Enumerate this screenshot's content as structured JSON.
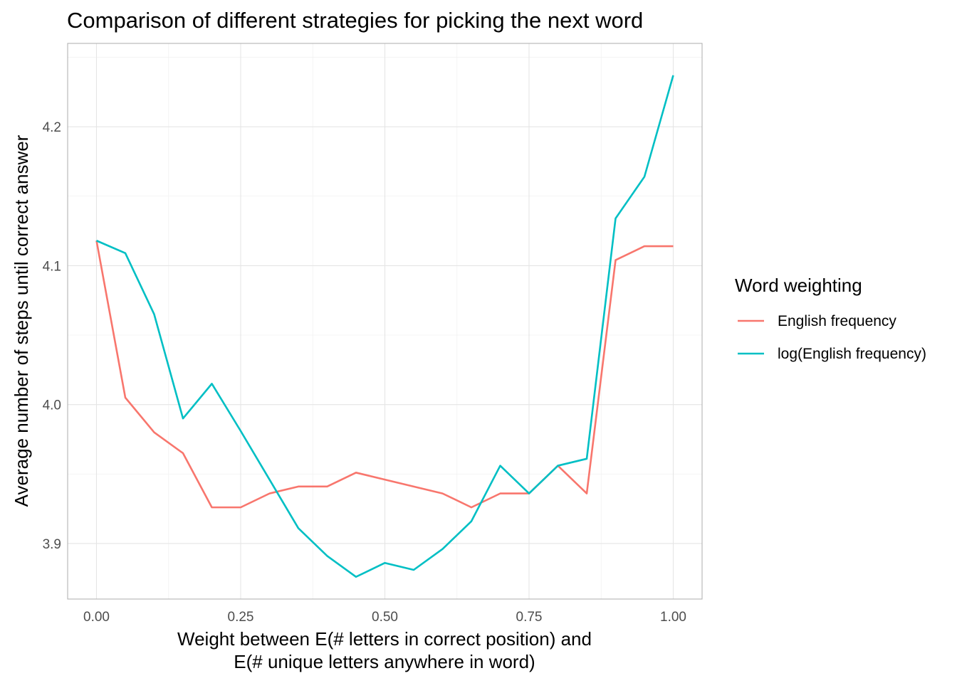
{
  "chart_data": {
    "type": "line",
    "title": "Comparison of different strategies for picking the next word",
    "xlabel_lines": [
      "Weight between E(# letters in correct position) and",
      "E(# unique letters anywhere in word)"
    ],
    "ylabel": "Average number of steps until correct answer",
    "xlim": [
      -0.05,
      1.05
    ],
    "ylim": [
      3.86,
      4.26
    ],
    "x_ticks": [
      0,
      0.25,
      0.5,
      0.75,
      1
    ],
    "x_tick_labels": [
      "0.00",
      "0.25",
      "0.50",
      "0.75",
      "1.00"
    ],
    "x_minor_ticks": [
      0.125,
      0.375,
      0.625,
      0.875
    ],
    "y_ticks": [
      3.9,
      4.0,
      4.1,
      4.2
    ],
    "y_tick_labels": [
      "3.9",
      "4.0",
      "4.1",
      "4.2"
    ],
    "y_minor_ticks": [
      3.95,
      4.05,
      4.15,
      4.25
    ],
    "grid": true,
    "legend": {
      "title": "Word weighting",
      "position": "right"
    },
    "x": [
      0,
      0.05,
      0.1,
      0.15,
      0.2,
      0.25,
      0.3,
      0.35,
      0.4,
      0.45,
      0.5,
      0.55,
      0.6,
      0.65,
      0.7,
      0.75,
      0.8,
      0.85,
      0.9,
      0.95,
      1.0
    ],
    "series": [
      {
        "name": "English frequency",
        "color": "#F8766D",
        "values": [
          4.118,
          4.005,
          3.98,
          3.965,
          3.926,
          3.926,
          3.936,
          3.941,
          3.941,
          3.951,
          3.946,
          3.941,
          3.936,
          3.926,
          3.936,
          3.936,
          3.956,
          3.936,
          4.104,
          4.114,
          4.114
        ]
      },
      {
        "name": "log(English frequency)",
        "color": "#00BFC4",
        "values": [
          4.118,
          4.109,
          4.065,
          3.99,
          4.015,
          3.981,
          3.946,
          3.911,
          3.891,
          3.876,
          3.886,
          3.881,
          3.896,
          3.916,
          3.956,
          3.936,
          3.956,
          3.961,
          4.134,
          4.164,
          4.237
        ]
      }
    ]
  }
}
